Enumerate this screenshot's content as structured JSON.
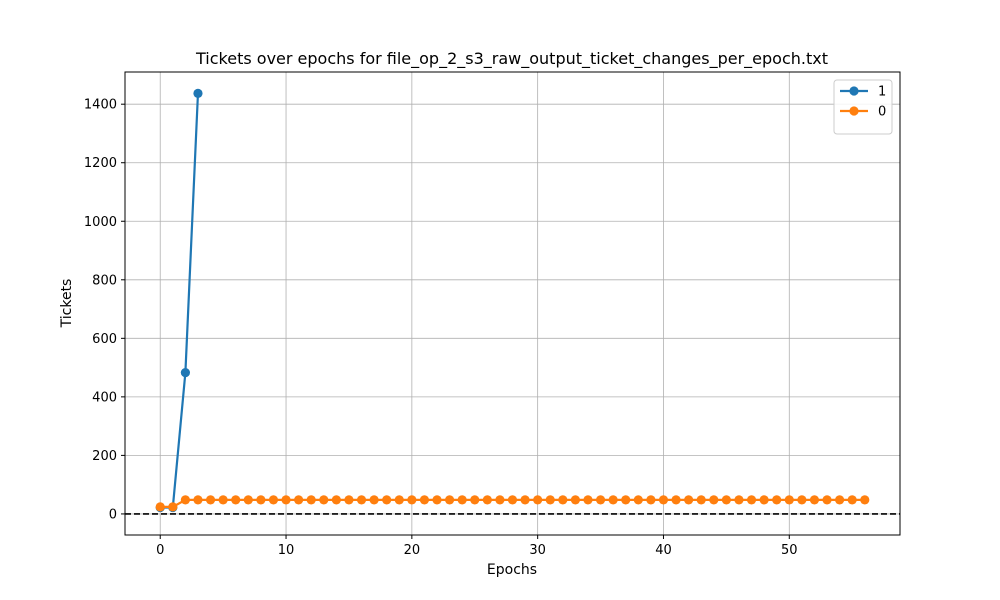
{
  "chart_data": {
    "type": "line",
    "title": "Tickets over epochs for file_op_2_s3_raw_output_ticket_changes_per_epoch.txt",
    "xlabel": "Epochs",
    "ylabel": "Tickets",
    "xlim": [
      -2.8,
      58.8
    ],
    "ylim": [
      -72,
      1510
    ],
    "xticks": [
      0,
      10,
      20,
      30,
      40,
      50
    ],
    "yticks": [
      0,
      200,
      400,
      600,
      800,
      1000,
      1200,
      1400
    ],
    "grid": true,
    "legend_position": "top-right",
    "reference_line": {
      "y": 0,
      "style": "dashed",
      "color": "#000000"
    },
    "series": [
      {
        "name": "1",
        "color": "#1f77b4",
        "x": [
          0,
          1,
          2,
          3
        ],
        "y": [
          22,
          22,
          483,
          1437
        ]
      },
      {
        "name": "0",
        "color": "#ff7f0e",
        "x": [
          0,
          1,
          2,
          3,
          4,
          5,
          6,
          7,
          8,
          9,
          10,
          11,
          12,
          13,
          14,
          15,
          16,
          17,
          18,
          19,
          20,
          21,
          22,
          23,
          24,
          25,
          26,
          27,
          28,
          29,
          30,
          31,
          32,
          33,
          34,
          35,
          36,
          37,
          38,
          39,
          40,
          41,
          42,
          43,
          44,
          45,
          46,
          47,
          48,
          49,
          50,
          51,
          52,
          53,
          54,
          55,
          56
        ],
        "y": [
          24,
          24,
          48,
          48,
          48,
          48,
          48,
          48,
          48,
          48,
          48,
          48,
          48,
          48,
          48,
          48,
          48,
          48,
          48,
          48,
          48,
          48,
          48,
          48,
          48,
          48,
          48,
          48,
          48,
          48,
          48,
          48,
          48,
          48,
          48,
          48,
          48,
          48,
          48,
          48,
          48,
          48,
          48,
          48,
          48,
          48,
          48,
          48,
          48,
          48,
          48,
          48,
          48,
          48,
          48,
          48,
          48
        ]
      }
    ]
  }
}
